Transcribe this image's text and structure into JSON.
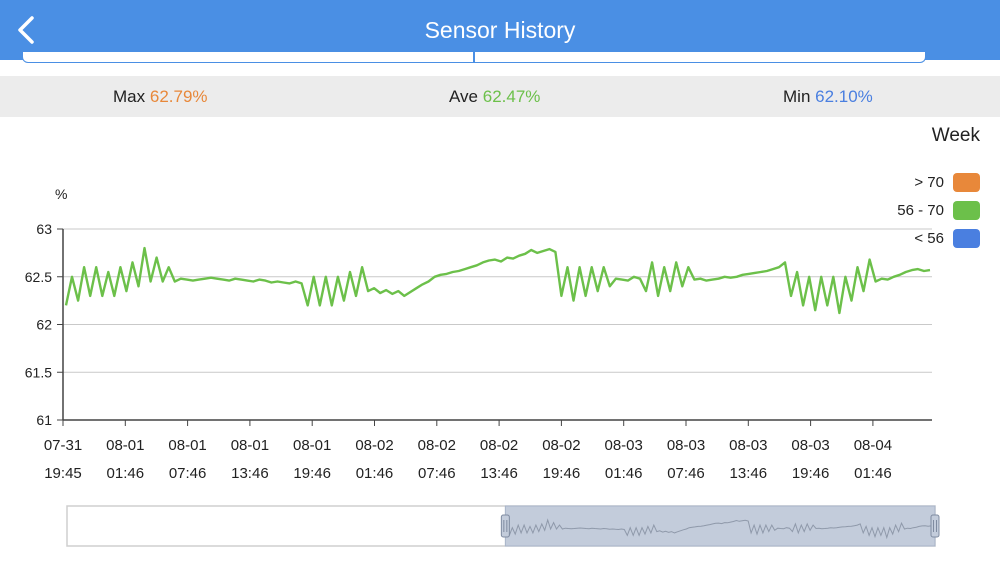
{
  "header": {
    "title": "Sensor History",
    "back_icon": "chevron-left-icon"
  },
  "stats": {
    "max_label": "Max",
    "max_value": "62.79%",
    "max_color": "#e8883a",
    "ave_label": "Ave",
    "ave_value": "62.47%",
    "ave_color": "#6cc04a",
    "min_label": "Min",
    "min_value": "62.10%",
    "min_color": "#4a7fe0"
  },
  "range_label": "Week",
  "legend": [
    {
      "label": "> 70",
      "color": "#e8883a"
    },
    {
      "label": "56 - 70",
      "color": "#6cc04a"
    },
    {
      "label": "< 56",
      "color": "#4a7fe0"
    }
  ],
  "unit_label": "%",
  "chart_data": {
    "type": "line",
    "ylabel": "%",
    "ylim": [
      61,
      63
    ],
    "y_ticks": [
      "63",
      "62.5",
      "62",
      "61.5",
      "61"
    ],
    "x_tick_labels": [
      [
        "07-31",
        "19:45"
      ],
      [
        "08-01",
        "01:46"
      ],
      [
        "08-01",
        "07:46"
      ],
      [
        "08-01",
        "13:46"
      ],
      [
        "08-01",
        "19:46"
      ],
      [
        "08-02",
        "01:46"
      ],
      [
        "08-02",
        "07:46"
      ],
      [
        "08-02",
        "13:46"
      ],
      [
        "08-02",
        "19:46"
      ],
      [
        "08-03",
        "01:46"
      ],
      [
        "08-03",
        "07:46"
      ],
      [
        "08-03",
        "13:46"
      ],
      [
        "08-03",
        "19:46"
      ],
      [
        "08-04",
        "01:46"
      ]
    ],
    "series": [
      {
        "color": "#6cc04a",
        "values": [
          62.2,
          62.5,
          62.25,
          62.6,
          62.3,
          62.6,
          62.3,
          62.55,
          62.3,
          62.6,
          62.35,
          62.65,
          62.4,
          62.8,
          62.45,
          62.7,
          62.45,
          62.6,
          62.45,
          62.48,
          62.47,
          62.46,
          62.47,
          62.48,
          62.49,
          62.48,
          62.47,
          62.46,
          62.48,
          62.47,
          62.46,
          62.45,
          62.47,
          62.46,
          62.44,
          62.45,
          62.44,
          62.43,
          62.45,
          62.43,
          62.2,
          62.5,
          62.2,
          62.5,
          62.2,
          62.5,
          62.25,
          62.55,
          62.3,
          62.6,
          62.35,
          62.38,
          62.33,
          62.36,
          62.32,
          62.35,
          62.3,
          62.34,
          62.38,
          62.42,
          62.45,
          62.5,
          62.52,
          62.53,
          62.55,
          62.56,
          62.58,
          62.6,
          62.62,
          62.65,
          62.67,
          62.68,
          62.66,
          62.7,
          62.69,
          62.72,
          62.74,
          62.78,
          62.75,
          62.77,
          62.79,
          62.76,
          62.3,
          62.6,
          62.25,
          62.6,
          62.3,
          62.6,
          62.35,
          62.6,
          62.4,
          62.48,
          62.47,
          62.46,
          62.5,
          62.48,
          62.35,
          62.65,
          62.3,
          62.6,
          62.35,
          62.65,
          62.4,
          62.6,
          62.47,
          62.48,
          62.46,
          62.47,
          62.48,
          62.5,
          62.49,
          62.5,
          62.52,
          62.53,
          62.54,
          62.55,
          62.56,
          62.58,
          62.6,
          62.65,
          62.3,
          62.55,
          62.2,
          62.5,
          62.15,
          62.5,
          62.2,
          62.5,
          62.12,
          62.5,
          62.25,
          62.6,
          62.35,
          62.68,
          62.45,
          62.48,
          62.47,
          62.5,
          62.52,
          62.55,
          62.57,
          62.58,
          62.56,
          62.57
        ]
      }
    ]
  },
  "navigator": {
    "window_start": 0.505,
    "window_end": 1.0
  }
}
